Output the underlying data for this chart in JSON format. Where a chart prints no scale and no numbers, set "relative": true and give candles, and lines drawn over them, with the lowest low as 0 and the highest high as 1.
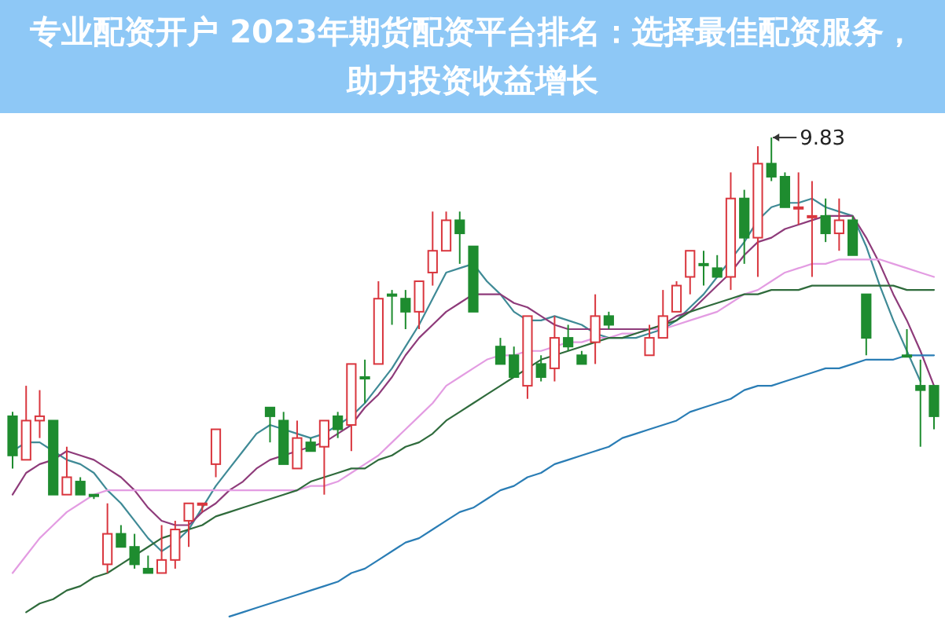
{
  "chart_data": {
    "type": "candlestick",
    "relative": true,
    "title": "专业配资开户 2023年期货配资平台排名：选择最佳配资服务，助力投资收益增长",
    "categories": [
      null,
      null,
      null,
      null,
      null,
      null,
      null,
      null,
      null,
      null,
      null,
      null,
      null,
      null,
      null,
      null,
      null,
      null,
      null,
      null,
      null,
      null,
      null,
      null,
      null,
      null,
      null,
      null,
      null,
      null,
      null,
      null,
      null,
      null,
      null,
      null,
      null,
      null,
      null,
      null,
      null,
      null,
      null,
      null,
      null,
      null,
      null,
      null,
      null,
      null,
      null,
      null,
      null,
      null,
      null,
      null,
      null,
      null,
      null,
      null,
      null,
      null,
      null,
      null,
      null,
      null,
      null,
      null,
      null
    ],
    "ohlc": [
      [
        0.36,
        0.37,
        0.24,
        0.27
      ],
      [
        0.26,
        0.43,
        0.26,
        0.35
      ],
      [
        0.35,
        0.42,
        0.31,
        0.36
      ],
      [
        0.35,
        0.35,
        0.18,
        0.18
      ],
      [
        0.18,
        0.29,
        0.18,
        0.22
      ],
      [
        0.21,
        0.22,
        0.18,
        0.18
      ],
      [
        0.18,
        0.18,
        0.17,
        0.18
      ],
      [
        0.02,
        0.16,
        0,
        0.09
      ],
      [
        0.09,
        0.11,
        0.06,
        0.06
      ],
      [
        0.06,
        0.09,
        0.01,
        0.02
      ],
      [
        0.01,
        0.04,
        0,
        0
      ],
      [
        0,
        0.11,
        0,
        0.03
      ],
      [
        0.03,
        0.12,
        0.01,
        0.1
      ],
      [
        0.12,
        0.16,
        0.06,
        0.16
      ],
      [
        0.16,
        0.16,
        0.14,
        0.16
      ],
      [
        0.25,
        0.33,
        0.22,
        0.33
      ],
      null,
      null,
      null,
      [
        0.38,
        0.38,
        0.3,
        0.36
      ],
      [
        0.35,
        0.37,
        0.25,
        0.25
      ],
      [
        0.24,
        0.35,
        0.24,
        0.31
      ],
      [
        0.3,
        0.31,
        0.28,
        0.28
      ],
      [
        0.29,
        0.35,
        0.18,
        0.35
      ],
      [
        0.36,
        0.37,
        0.31,
        0.33
      ],
      [
        0.34,
        0.48,
        0.28,
        0.48
      ],
      [
        0.45,
        0.49,
        0.39,
        0.45
      ],
      [
        0.48,
        0.67,
        0.48,
        0.63
      ],
      [
        0.64,
        0.65,
        0.57,
        0.64
      ],
      [
        0.63,
        0.65,
        0.56,
        0.6
      ],
      [
        0.6,
        0.67,
        0.56,
        0.67
      ],
      [
        0.69,
        0.83,
        0.66,
        0.74
      ],
      [
        0.74,
        0.83,
        0.74,
        0.81
      ],
      [
        0.81,
        0.83,
        0.71,
        0.78
      ],
      [
        0.75,
        0.75,
        0.6,
        0.6
      ],
      null,
      [
        0.52,
        0.54,
        0.48,
        0.48
      ],
      [
        0.5,
        0.52,
        0.45,
        0.45
      ],
      [
        0.43,
        0.59,
        0.4,
        0.59
      ],
      [
        0.48,
        0.5,
        0.44,
        0.45
      ],
      [
        0.47,
        0.59,
        0.44,
        0.54
      ],
      [
        0.54,
        0.57,
        0.51,
        0.52
      ],
      [
        0.5,
        0.51,
        0.48,
        0.48
      ],
      [
        0.53,
        0.64,
        0.48,
        0.59
      ],
      [
        0.59,
        0.6,
        0.56,
        0.57
      ],
      null,
      null,
      [
        0.5,
        0.57,
        0.5,
        0.54
      ],
      [
        0.54,
        0.65,
        0.54,
        0.59
      ],
      [
        0.6,
        0.67,
        0.6,
        0.66
      ],
      [
        0.68,
        0.74,
        0.64,
        0.74
      ],
      [
        0.71,
        0.74,
        0.66,
        0.71
      ],
      [
        0.7,
        0.73,
        0.68,
        0.68
      ],
      [
        0.68,
        0.92,
        0.65,
        0.86
      ],
      [
        0.86,
        0.88,
        0.71,
        0.77
      ],
      [
        0.77,
        0.98,
        0.68,
        0.94
      ],
      [
        0.94,
        1,
        0.9,
        0.91
      ],
      [
        0.91,
        0.92,
        0.84,
        0.84
      ],
      [
        0.84,
        0.92,
        0.8,
        0.84
      ],
      [
        0.82,
        0.9,
        0.68,
        0.82
      ],
      [
        0.82,
        0.86,
        0.76,
        0.78
      ],
      [
        0.78,
        0.86,
        0.74,
        0.81
      ],
      [
        0.81,
        0.82,
        0.73,
        0.73
      ],
      [
        0.64,
        0.64,
        0.5,
        0.54
      ],
      null,
      null,
      [
        0.5,
        0.56,
        0.5,
        0.5
      ],
      [
        0.43,
        0.49,
        0.29,
        0.42
      ],
      [
        0.43,
        0.43,
        0.33,
        0.36
      ]
    ],
    "colors": [
      "#1e8c2f",
      "#d9363e",
      "#d9363e",
      "#1e8c2f",
      "#d9363e",
      "#1e8c2f",
      "#1e8c2f",
      "#d9363e",
      "#1e8c2f",
      "#1e8c2f",
      "#1e8c2f",
      "#d9363e",
      "#d9363e",
      "#d9363e",
      "#d9363e",
      "#d9363e",
      null,
      null,
      null,
      "#1e8c2f",
      "#1e8c2f",
      "#d9363e",
      "#1e8c2f",
      "#d9363e",
      "#1e8c2f",
      "#d9363e",
      "#1e8c2f",
      "#d9363e",
      "#1e8c2f",
      "#1e8c2f",
      "#d9363e",
      "#d9363e",
      "#d9363e",
      "#1e8c2f",
      "#1e8c2f",
      null,
      "#1e8c2f",
      "#1e8c2f",
      "#d9363e",
      "#1e8c2f",
      "#d9363e",
      "#1e8c2f",
      "#1e8c2f",
      "#d9363e",
      "#1e8c2f",
      null,
      null,
      "#d9363e",
      "#d9363e",
      "#d9363e",
      "#d9363e",
      "#1e8c2f",
      "#1e8c2f",
      "#d9363e",
      "#1e8c2f",
      "#d9363e",
      "#1e8c2f",
      "#1e8c2f",
      "#d9363e",
      "#d9363e",
      "#1e8c2f",
      "#d9363e",
      "#1e8c2f",
      "#1e8c2f",
      null,
      null,
      "#1e8c2f",
      "#1e8c2f",
      "#1e8c2f"
    ],
    "series": [
      {
        "type": "line",
        "color": "#3f8a96",
        "values": [
          0.28,
          0.3,
          0.3,
          0.28,
          0.26,
          0.25,
          0.23,
          0.19,
          0.16,
          0.12,
          0.08,
          0.05,
          0.07,
          0.1,
          0.15,
          0.2,
          0.24,
          0.28,
          0.32,
          0.34,
          0.33,
          0.32,
          0.31,
          0.32,
          0.34,
          0.36,
          0.39,
          0.43,
          0.47,
          0.52,
          0.57,
          0.63,
          0.69,
          0.7,
          0.71,
          0.67,
          0.64,
          0.6,
          0.58,
          0.58,
          0.59,
          0.58,
          0.57,
          0.55,
          0.54,
          0.54,
          0.54,
          0.55,
          0.56,
          0.58,
          0.61,
          0.64,
          0.68,
          0.72,
          0.76,
          0.81,
          0.84,
          0.85,
          0.85,
          0.86,
          0.84,
          0.83,
          0.82,
          0.75,
          0.66,
          0.58,
          0.51,
          0.44,
          null
        ]
      },
      {
        "type": "line",
        "color": "#8e3b7a",
        "values": [
          0.18,
          0.23,
          0.25,
          0.26,
          0.28,
          0.27,
          0.26,
          0.24,
          0.22,
          0.19,
          0.15,
          0.12,
          0.11,
          0.11,
          0.14,
          0.16,
          0.19,
          0.21,
          0.24,
          0.26,
          0.27,
          0.28,
          0.29,
          0.3,
          0.32,
          0.34,
          0.38,
          0.41,
          0.45,
          0.5,
          0.54,
          0.57,
          0.6,
          0.62,
          0.64,
          0.64,
          0.64,
          0.62,
          0.61,
          0.59,
          0.57,
          0.56,
          0.56,
          0.56,
          0.56,
          0.56,
          0.56,
          0.56,
          0.57,
          0.59,
          0.6,
          0.63,
          0.66,
          0.69,
          0.73,
          0.76,
          0.77,
          0.79,
          0.8,
          0.81,
          0.82,
          0.82,
          0.82,
          0.77,
          0.71,
          0.64,
          0.58,
          0.51,
          0.43
        ]
      },
      {
        "type": "line",
        "color": "#e39ce2",
        "values": [
          0,
          0.04,
          0.08,
          0.11,
          0.14,
          0.16,
          0.18,
          0.19,
          0.19,
          0.19,
          0.19,
          0.19,
          0.19,
          0.19,
          0.19,
          0.19,
          0.19,
          0.19,
          0.19,
          0.19,
          0.19,
          0.19,
          0.2,
          0.2,
          0.21,
          0.23,
          0.25,
          0.27,
          0.3,
          0.33,
          0.36,
          0.39,
          0.43,
          0.45,
          0.47,
          0.49,
          0.5,
          0.5,
          0.51,
          0.51,
          0.52,
          0.53,
          0.53,
          0.54,
          0.54,
          0.55,
          0.55,
          0.56,
          0.56,
          0.57,
          0.58,
          0.59,
          0.6,
          0.62,
          0.64,
          0.65,
          0.67,
          0.69,
          0.7,
          0.71,
          0.71,
          0.72,
          0.72,
          0.72,
          0.72,
          0.71,
          0.7,
          0.69,
          0.68
        ]
      },
      {
        "type": "line",
        "color": "#2f6b3c",
        "values": [
          null,
          -0.09,
          -0.07,
          -0.06,
          -0.04,
          -0.03,
          -0.01,
          0.0,
          0.02,
          0.04,
          0.06,
          0.08,
          0.09,
          0.1,
          0.11,
          0.13,
          0.14,
          0.15,
          0.16,
          0.17,
          0.18,
          0.19,
          0.21,
          0.22,
          0.23,
          0.24,
          0.24,
          0.26,
          0.27,
          0.29,
          0.3,
          0.32,
          0.35,
          0.37,
          0.39,
          0.41,
          0.43,
          0.45,
          0.47,
          0.49,
          0.5,
          0.51,
          0.52,
          0.53,
          0.54,
          0.54,
          0.55,
          0.56,
          0.57,
          0.58,
          0.6,
          0.61,
          0.62,
          0.63,
          0.64,
          0.64,
          0.65,
          0.65,
          0.65,
          0.66,
          0.66,
          0.66,
          0.66,
          0.66,
          0.66,
          0.66,
          0.65,
          0.65,
          0.65
        ]
      },
      {
        "type": "line",
        "color": "#2a7db5",
        "values": [
          null,
          null,
          null,
          null,
          null,
          null,
          null,
          null,
          null,
          null,
          null,
          null,
          null,
          null,
          null,
          null,
          -0.1,
          -0.09,
          -0.08,
          -0.07,
          -0.06,
          -0.05,
          -0.04,
          -0.03,
          -0.02,
          0.0,
          0.01,
          0.03,
          0.05,
          0.07,
          0.08,
          0.1,
          0.12,
          0.14,
          0.15,
          0.17,
          0.19,
          0.2,
          0.22,
          0.23,
          0.25,
          0.26,
          0.27,
          0.28,
          0.29,
          0.31,
          0.32,
          0.33,
          0.34,
          0.35,
          0.37,
          0.38,
          0.39,
          0.4,
          0.42,
          0.43,
          0.43,
          0.44,
          0.45,
          0.46,
          0.47,
          0.47,
          0.48,
          0.49,
          0.49,
          0.49,
          0.5,
          0.5,
          0.5
        ]
      }
    ],
    "annotations": [
      "9.83"
    ]
  }
}
